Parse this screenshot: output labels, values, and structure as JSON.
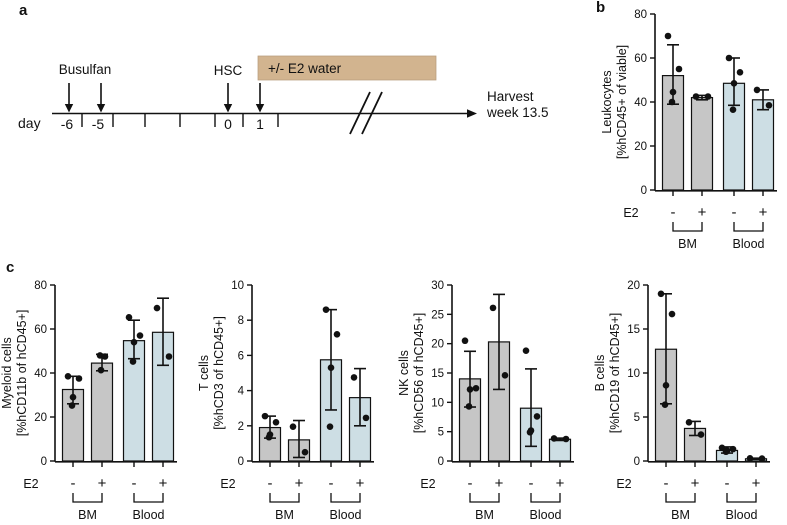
{
  "panels": {
    "a": "a",
    "b": "b",
    "c": "c"
  },
  "timeline": {
    "day_label": "day",
    "events": {
      "busulfan": "Busulfan",
      "hsc": "HSC",
      "e2_band": "+/- E2 water"
    },
    "harvest": {
      "line1": "Harvest",
      "line2": "week 13.5"
    },
    "day_ticks": [
      "-6",
      "-5",
      "0",
      "1"
    ],
    "band_color": "#d2b48f"
  },
  "colors": {
    "bm": "#c6c6c6",
    "blood": "#cddee4",
    "outline": "#111111",
    "point": "#111111"
  },
  "chart_data": [
    {
      "id": "leukocytes",
      "type": "bar",
      "ylabel": [
        "Leukocytes",
        "[%hCD45+ of viable]"
      ],
      "ylim": [
        0,
        80
      ],
      "yticks": [
        0,
        20,
        40,
        60,
        80
      ],
      "categories": [
        "BM E2-",
        "BM E2+",
        "Blood E2-",
        "Blood E2+"
      ],
      "x_axis": {
        "label": "E2",
        "signs": [
          "-",
          "+",
          "-",
          "+"
        ],
        "groups": [
          {
            "label": "BM",
            "bars": [
              0,
              1
            ]
          },
          {
            "label": "Blood",
            "bars": [
              2,
              3
            ]
          }
        ]
      },
      "bars": [
        {
          "group": "BM",
          "e2": "-",
          "color": "bm",
          "mean": 52,
          "err_low": 39,
          "err_high": 66,
          "points": [
            70,
            55,
            44.5,
            40
          ]
        },
        {
          "group": "BM",
          "e2": "+",
          "color": "bm",
          "mean": 42,
          "err_low": 41,
          "err_high": 43,
          "points": [
            42.5,
            42.5
          ]
        },
        {
          "group": "Blood",
          "e2": "-",
          "color": "blood",
          "mean": 48.5,
          "err_low": 38.5,
          "err_high": 60,
          "points": [
            60,
            53.5,
            48.5,
            36.5
          ]
        },
        {
          "group": "Blood",
          "e2": "+",
          "color": "blood",
          "mean": 41,
          "err_low": 36.5,
          "err_high": 45.5,
          "points": [
            45.5,
            38.5
          ]
        }
      ]
    },
    {
      "id": "myeloid_cells",
      "type": "bar",
      "ylabel": [
        "Myeloid cells",
        "[%hCD11b of hCD45+]"
      ],
      "ylim": [
        0,
        80
      ],
      "yticks": [
        0,
        20,
        40,
        60,
        80
      ],
      "categories": [
        "BM E2-",
        "BM E2+",
        "Blood E2-",
        "Blood E2+"
      ],
      "x_axis": {
        "label": "E2",
        "signs": [
          "-",
          "+",
          "-",
          "+"
        ],
        "groups": [
          {
            "label": "BM",
            "bars": [
              0,
              1
            ]
          },
          {
            "label": "Blood",
            "bars": [
              2,
              3
            ]
          }
        ]
      },
      "bars": [
        {
          "group": "BM",
          "e2": "-",
          "color": "bm",
          "mean": 32.5,
          "err_low": 26,
          "err_high": 38.5,
          "points": [
            38.5,
            37.5,
            29,
            25.2
          ]
        },
        {
          "group": "BM",
          "e2": "+",
          "color": "bm",
          "mean": 44.5,
          "err_low": 41,
          "err_high": 48.5,
          "points": [
            48,
            47.5,
            41.3
          ]
        },
        {
          "group": "Blood",
          "e2": "-",
          "color": "blood",
          "mean": 54.7,
          "err_low": 46.5,
          "err_high": 64,
          "points": [
            65.3,
            57,
            54,
            45.2
          ]
        },
        {
          "group": "Blood",
          "e2": "+",
          "color": "blood",
          "mean": 58.5,
          "err_low": 43.5,
          "err_high": 74,
          "points": [
            69.5,
            47.5
          ]
        }
      ]
    },
    {
      "id": "t_cells",
      "type": "bar",
      "ylabel": [
        "T cells",
        "[%hCD3 of hCD45+]"
      ],
      "ylim": [
        0,
        10
      ],
      "yticks": [
        0,
        2,
        4,
        6,
        8,
        10
      ],
      "categories": [
        "BM E2-",
        "BM E2+",
        "Blood E2-",
        "Blood E2+"
      ],
      "x_axis": {
        "label": "E2",
        "signs": [
          "-",
          "+",
          "-",
          "+"
        ],
        "groups": [
          {
            "label": "BM",
            "bars": [
              0,
              1
            ]
          },
          {
            "label": "Blood",
            "bars": [
              2,
              3
            ]
          }
        ]
      },
      "bars": [
        {
          "group": "BM",
          "e2": "-",
          "color": "bm",
          "mean": 1.9,
          "err_low": 1.3,
          "err_high": 2.55,
          "points": [
            2.55,
            2.2,
            1.5,
            1.35
          ]
        },
        {
          "group": "BM",
          "e2": "+",
          "color": "bm",
          "mean": 1.2,
          "err_low": 0.2,
          "err_high": 2.3,
          "points": [
            1.95,
            0.5
          ]
        },
        {
          "group": "Blood",
          "e2": "-",
          "color": "blood",
          "mean": 5.75,
          "err_low": 2.9,
          "err_high": 8.6,
          "points": [
            8.6,
            7.2,
            5.3,
            1.95
          ]
        },
        {
          "group": "Blood",
          "e2": "+",
          "color": "blood",
          "mean": 3.6,
          "err_low": 2.0,
          "err_high": 5.25,
          "points": [
            4.75,
            2.45
          ]
        }
      ]
    },
    {
      "id": "nk_cells",
      "type": "bar",
      "ylabel": [
        "NK cells",
        "[%hCD56 of hCD45+]"
      ],
      "ylim": [
        0,
        30
      ],
      "yticks": [
        0,
        5,
        10,
        15,
        20,
        25,
        30
      ],
      "categories": [
        "BM E2-",
        "BM E2+",
        "Blood E2-",
        "Blood E2+"
      ],
      "x_axis": {
        "label": "E2",
        "signs": [
          "-",
          "+",
          "-",
          "+"
        ],
        "groups": [
          {
            "label": "BM",
            "bars": [
              0,
              1
            ]
          },
          {
            "label": "Blood",
            "bars": [
              2,
              3
            ]
          }
        ]
      },
      "bars": [
        {
          "group": "BM",
          "e2": "-",
          "color": "bm",
          "mean": 14,
          "err_low": 9.2,
          "err_high": 18.7,
          "points": [
            20.5,
            12.4,
            12.2,
            9.3
          ]
        },
        {
          "group": "BM",
          "e2": "+",
          "color": "bm",
          "mean": 20.3,
          "err_low": 12.2,
          "err_high": 28.4,
          "points": [
            26.1,
            14.6
          ]
        },
        {
          "group": "Blood",
          "e2": "-",
          "color": "blood",
          "mean": 9,
          "err_low": 2.5,
          "err_high": 15.7,
          "points": [
            18.8,
            7.6,
            5.2,
            4.9
          ]
        },
        {
          "group": "Blood",
          "e2": "+",
          "color": "blood",
          "mean": 3.7,
          "err_low": 3.5,
          "err_high": 3.9,
          "points": [
            3.85,
            3.75
          ]
        }
      ]
    },
    {
      "id": "b_cells",
      "type": "bar",
      "ylabel": [
        "B cells",
        "[%hCD19 of hCD45+]"
      ],
      "ylim": [
        0,
        20
      ],
      "yticks": [
        0,
        5,
        10,
        15,
        20
      ],
      "categories": [
        "BM E2-",
        "BM E2+",
        "Blood E2-",
        "Blood E2+"
      ],
      "x_axis": {
        "label": "E2",
        "signs": [
          "-",
          "+",
          "-",
          "+"
        ],
        "groups": [
          {
            "label": "BM",
            "bars": [
              0,
              1
            ]
          },
          {
            "label": "Blood",
            "bars": [
              2,
              3
            ]
          }
        ]
      },
      "bars": [
        {
          "group": "BM",
          "e2": "-",
          "color": "bm",
          "mean": 12.7,
          "err_low": 6.5,
          "err_high": 19,
          "points": [
            19,
            16.7,
            8.6,
            6.4
          ]
        },
        {
          "group": "BM",
          "e2": "+",
          "color": "bm",
          "mean": 3.7,
          "err_low": 2.9,
          "err_high": 4.5,
          "points": [
            4.4,
            3.0
          ]
        },
        {
          "group": "Blood",
          "e2": "-",
          "color": "blood",
          "mean": 1.2,
          "err_low": 0.9,
          "err_high": 1.6,
          "points": [
            1.5,
            1.35,
            1.2,
            1.05
          ]
        },
        {
          "group": "Blood",
          "e2": "+",
          "color": "blood",
          "mean": 0.25,
          "err_low": 0.2,
          "err_high": 0.32,
          "points": [
            0.3,
            0.28
          ]
        }
      ]
    }
  ]
}
